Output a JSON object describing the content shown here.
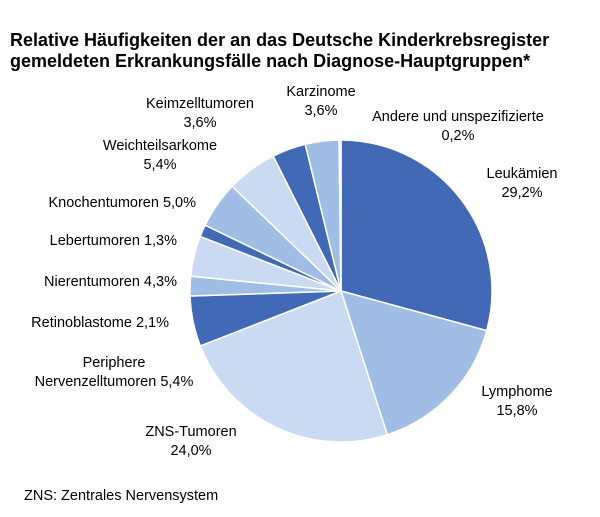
{
  "chart_data": {
    "type": "pie",
    "title": [
      "Relative Häufigkeiten der an das Deutsche Kinderkrebsregister",
      "gemeldeten Erkrankungsfälle nach Diagnose-Hauptgruppen*"
    ],
    "slices": [
      {
        "label": [
          "Leukämien",
          "29,2%"
        ],
        "value": 29.2,
        "color": "#4169b5"
      },
      {
        "label": [
          "Lymphome",
          "15,8%"
        ],
        "value": 15.8,
        "color": "#a0bde6"
      },
      {
        "label": [
          "ZNS-Tumoren",
          "24,0%"
        ],
        "value": 24.0,
        "color": "#c9daf2"
      },
      {
        "label": [
          "Periphere",
          "Nervenzelltumoren 5,4%"
        ],
        "value": 5.4,
        "color": "#4169b5"
      },
      {
        "label": [
          "Retinoblastome 2,1%"
        ],
        "value": 2.1,
        "color": "#a0bde6"
      },
      {
        "label": [
          "Nierentumoren 4,3%"
        ],
        "value": 4.3,
        "color": "#c9daf2"
      },
      {
        "label": [
          "Lebertumoren 1,3%"
        ],
        "value": 1.3,
        "color": "#4169b5"
      },
      {
        "label": [
          "Knochentumoren 5,0%"
        ],
        "value": 5.0,
        "color": "#a0bde6"
      },
      {
        "label": [
          "Weichteilsarkome",
          "5,4%"
        ],
        "value": 5.4,
        "color": "#c9daf2"
      },
      {
        "label": [
          "Keimzelltumoren",
          "3,6%"
        ],
        "value": 3.6,
        "color": "#4169b5"
      },
      {
        "label": [
          "Karzinome",
          "3,6%"
        ],
        "value": 3.6,
        "color": "#a0bde6"
      },
      {
        "label": [
          "Andere und unspezifizierte",
          "0,2%"
        ],
        "value": 0.2,
        "color": "#c9daf2"
      }
    ],
    "footnote": "ZNS: Zentrales Nervensystem"
  }
}
